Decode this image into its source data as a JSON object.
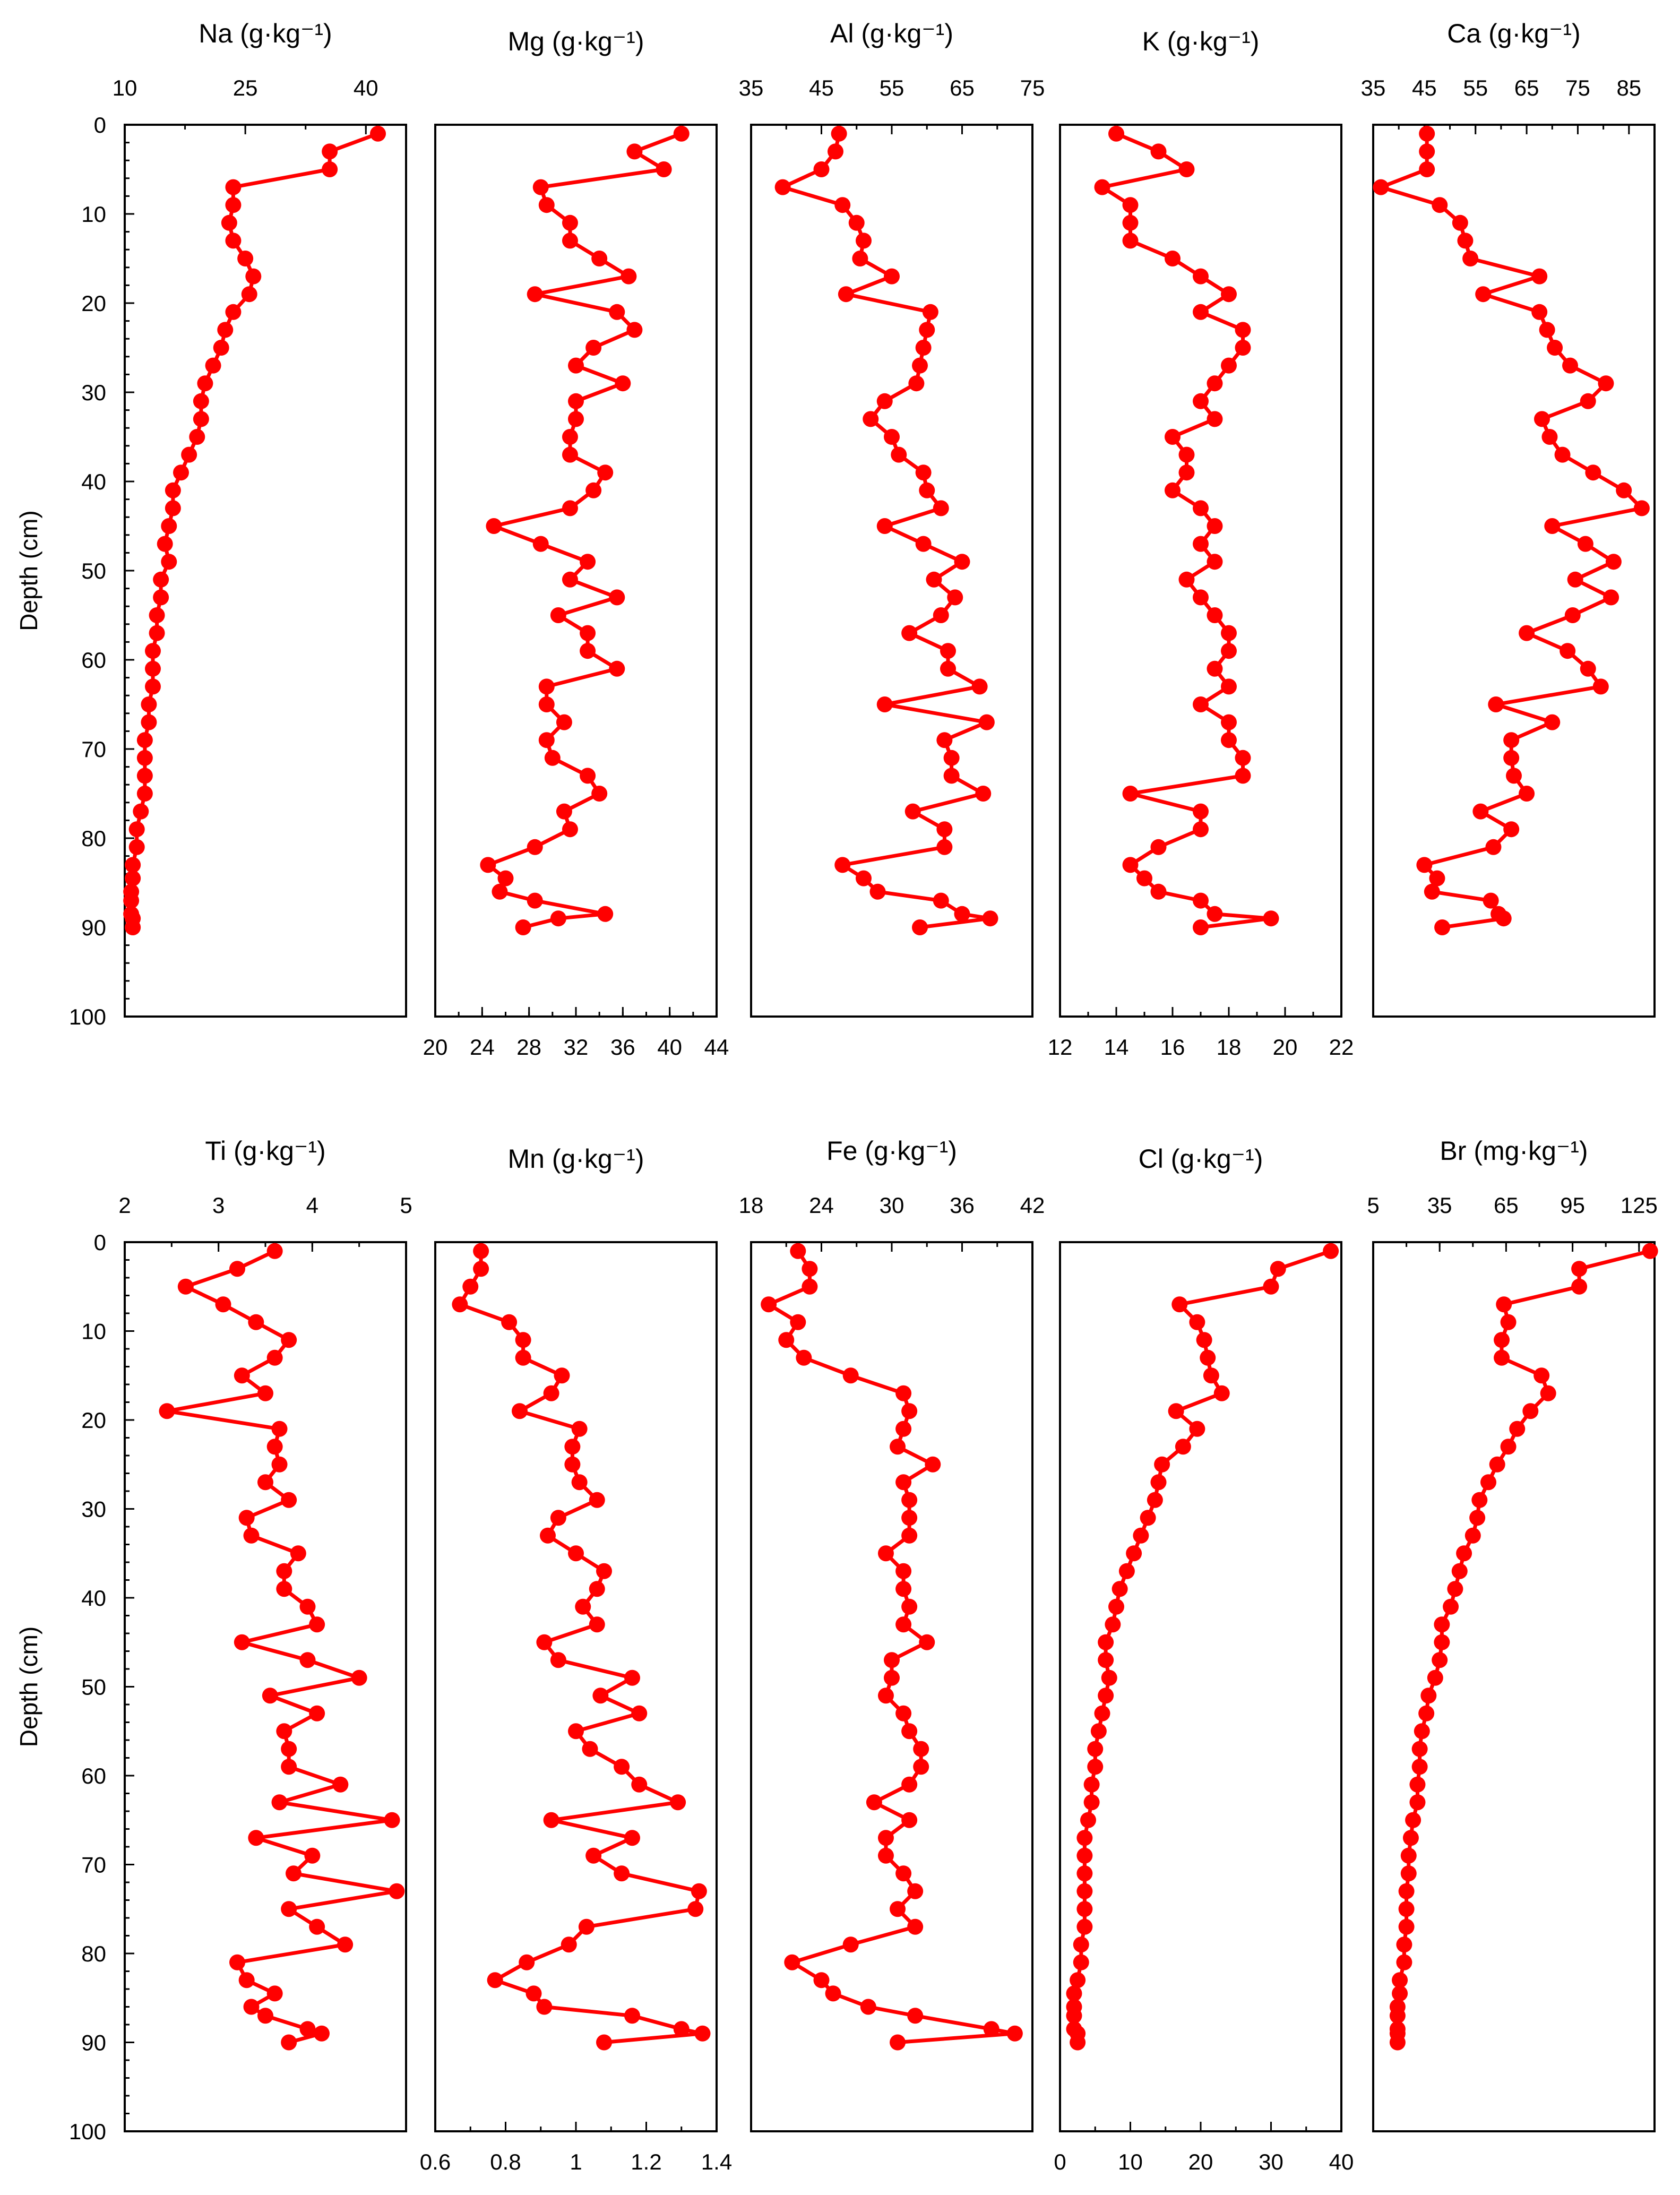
{
  "chart_data": {
    "type": "line",
    "description": "Depth profiles of element concentrations in a sediment core",
    "y_axis": {
      "label": "Depth (cm)",
      "range": [
        0,
        100
      ],
      "ticks": [
        0,
        10,
        20,
        30,
        40,
        50,
        60,
        70,
        80,
        90,
        100
      ],
      "inverted": true
    },
    "depths": [
      1,
      3,
      5,
      7,
      9,
      11,
      13,
      15,
      17,
      19,
      21,
      23,
      25,
      27,
      29,
      31,
      33,
      35,
      37,
      39,
      41,
      43,
      45,
      47,
      49,
      51,
      53,
      55,
      57,
      59,
      61,
      63,
      65,
      67,
      69,
      71,
      73,
      75,
      77,
      79,
      81,
      83,
      84.5,
      86,
      87,
      88.5,
      89,
      90
    ],
    "series_color": "#ff0000",
    "panels": [
      {
        "id": "na",
        "title": "Na (g·kg⁻¹)",
        "axis_pos": "top",
        "xlim": [
          10,
          45
        ],
        "ticks": [
          10,
          25,
          40
        ],
        "values": [
          41.5,
          35.5,
          35.5,
          23.5,
          23.5,
          23,
          23.5,
          25,
          26,
          25.5,
          23.5,
          22.5,
          22,
          21,
          20,
          19.5,
          19.5,
          19,
          18,
          17,
          16,
          16,
          15.5,
          15,
          15.5,
          14.5,
          14.5,
          14,
          14,
          13.5,
          13.5,
          13.5,
          13,
          13,
          12.5,
          12.5,
          12.5,
          12.5,
          12,
          11.5,
          11.5,
          11,
          11,
          10.8,
          10.8,
          10.8,
          11,
          11
        ]
      },
      {
        "id": "mg",
        "title": "Mg (g·kg⁻¹)",
        "axis_pos": "bottom",
        "xlim": [
          20,
          44
        ],
        "ticks": [
          20,
          24,
          28,
          32,
          36,
          40,
          44
        ],
        "values": [
          41,
          37,
          39.5,
          29,
          29.5,
          31.5,
          31.5,
          34,
          36.5,
          28.5,
          35.5,
          37,
          33.5,
          32,
          36,
          32,
          32,
          31.5,
          31.5,
          34.5,
          33.5,
          31.5,
          25,
          29,
          33,
          31.5,
          35.5,
          30.5,
          33,
          33,
          35.5,
          29.5,
          29.5,
          31,
          29.5,
          30,
          33,
          34,
          31,
          31.5,
          28.5,
          24.5,
          26,
          25.5,
          28.5,
          34.5,
          30.5,
          27.5
        ]
      },
      {
        "id": "al",
        "title": "Al (g·kg⁻¹)",
        "axis_pos": "top",
        "xlim": [
          35,
          75
        ],
        "ticks": [
          35,
          45,
          55,
          65,
          75
        ],
        "values": [
          47.5,
          47,
          45,
          39.5,
          48,
          50,
          51,
          50.5,
          55,
          48.5,
          60.5,
          60,
          59.5,
          59,
          58.5,
          54,
          52,
          55,
          56,
          59.5,
          60,
          62,
          54,
          59.5,
          65,
          61,
          64,
          62,
          57.5,
          63,
          63,
          67.5,
          54,
          68.5,
          62.5,
          63.5,
          63.5,
          68,
          58,
          62.5,
          62.5,
          48,
          51,
          53,
          62,
          65,
          69,
          59
        ]
      },
      {
        "id": "k",
        "title": "K (g·kg⁻¹)",
        "axis_pos": "bottom",
        "xlim": [
          12,
          22
        ],
        "ticks": [
          12,
          14,
          16,
          18,
          20,
          22
        ],
        "values": [
          14,
          15.5,
          16.5,
          13.5,
          14.5,
          14.5,
          14.5,
          16,
          17,
          18,
          17,
          18.5,
          18.5,
          18,
          17.5,
          17,
          17.5,
          16,
          16.5,
          16.5,
          16,
          17,
          17.5,
          17,
          17.5,
          16.5,
          17,
          17.5,
          18,
          18,
          17.5,
          18,
          17,
          18,
          18,
          18.5,
          18.5,
          14.5,
          17,
          17,
          15.5,
          14.5,
          15,
          15.5,
          17,
          17.5,
          19.5,
          17
        ]
      },
      {
        "id": "ca",
        "title": "Ca (g·kg⁻¹)",
        "axis_pos": "top",
        "xlim": [
          35,
          90
        ],
        "ticks": [
          35,
          45,
          55,
          65,
          75,
          85
        ],
        "values": [
          45.5,
          45.5,
          45.5,
          36.5,
          48,
          52,
          53,
          54,
          67.5,
          56.5,
          67.5,
          69,
          70.5,
          73.5,
          80.5,
          77,
          68,
          69.5,
          72,
          78,
          84,
          87.5,
          70,
          76.5,
          82,
          74.5,
          81.5,
          74,
          65,
          73,
          77,
          79.5,
          59,
          70,
          62,
          62,
          62.5,
          65,
          56,
          62,
          58.5,
          45,
          47.5,
          46.5,
          58,
          59.5,
          60.5,
          48.5
        ]
      },
      {
        "id": "ti",
        "title": "Ti (g·kg⁻¹)",
        "axis_pos": "top",
        "xlim": [
          2,
          5
        ],
        "ticks": [
          2,
          3,
          4,
          5
        ],
        "values": [
          3.6,
          3.2,
          2.65,
          3.05,
          3.4,
          3.75,
          3.6,
          3.25,
          3.5,
          2.45,
          3.65,
          3.6,
          3.65,
          3.5,
          3.75,
          3.3,
          3.35,
          3.85,
          3.7,
          3.7,
          3.95,
          4.05,
          3.25,
          3.95,
          4.5,
          3.55,
          4.05,
          3.7,
          3.75,
          3.75,
          4.3,
          3.65,
          4.85,
          3.4,
          4.0,
          3.8,
          4.9,
          3.75,
          4.05,
          4.35,
          3.2,
          3.3,
          3.6,
          3.35,
          3.5,
          3.95,
          4.1,
          3.75
        ]
      },
      {
        "id": "mn",
        "title": "Mn (g·kg⁻¹)",
        "axis_pos": "bottom",
        "xlim": [
          0.6,
          1.4
        ],
        "ticks": [
          0.6,
          0.8,
          1,
          1.2,
          1.4
        ],
        "ticklabels": [
          "0.6",
          "0.8",
          "1",
          "1.2",
          "1.4"
        ],
        "values": [
          0.73,
          0.73,
          0.7,
          0.67,
          0.81,
          0.85,
          0.85,
          0.96,
          0.93,
          0.84,
          1.01,
          0.99,
          0.99,
          1.01,
          1.06,
          0.95,
          0.92,
          1,
          1.08,
          1.06,
          1.02,
          1.06,
          0.91,
          0.95,
          1.16,
          1.07,
          1.18,
          1.0,
          1.04,
          1.13,
          1.18,
          1.29,
          0.93,
          1.16,
          1.05,
          1.13,
          1.35,
          1.34,
          1.03,
          0.98,
          0.86,
          0.77,
          0.88,
          0.91,
          1.16,
          1.3,
          1.36,
          1.08
        ]
      },
      {
        "id": "fe",
        "title": "Fe (g·kg⁻¹)",
        "axis_pos": "top",
        "xlim": [
          18,
          42
        ],
        "ticks": [
          18,
          24,
          30,
          36,
          42
        ],
        "values": [
          22,
          23,
          23,
          19.5,
          22,
          21,
          22.5,
          26.5,
          31,
          31.5,
          31,
          30.5,
          33.5,
          31,
          31.5,
          31.5,
          31.5,
          29.5,
          31,
          31,
          31.5,
          31,
          33,
          30,
          30,
          29.5,
          31,
          31.5,
          32.5,
          32.5,
          31.5,
          28.5,
          31.5,
          29.5,
          29.5,
          31,
          32,
          30.5,
          32,
          26.5,
          21.5,
          24,
          25,
          28,
          32,
          38.5,
          40.5,
          30.5
        ]
      },
      {
        "id": "cl",
        "title": "Cl (g·kg⁻¹)",
        "axis_pos": "bottom",
        "xlim": [
          0,
          40
        ],
        "ticks": [
          0,
          10,
          20,
          30,
          40
        ],
        "values": [
          38.5,
          31,
          30,
          17,
          19.5,
          20.5,
          21,
          21.5,
          23,
          16.5,
          19.5,
          17.5,
          14.5,
          14,
          13.5,
          12.5,
          11.5,
          10.5,
          9.5,
          8.5,
          8,
          7.5,
          6.5,
          6.5,
          7,
          6.5,
          6,
          5.5,
          5,
          5,
          4.5,
          4.5,
          4,
          3.5,
          3.5,
          3.5,
          3.5,
          3.5,
          3.5,
          3,
          3,
          2.5,
          2,
          2,
          2,
          2,
          2.5,
          2.5
        ]
      },
      {
        "id": "br",
        "title": "Br (mg·kg⁻¹)",
        "axis_pos": "top",
        "xlim": [
          5,
          132
        ],
        "ticks": [
          5,
          35,
          65,
          95,
          125
        ],
        "values": [
          130,
          98,
          98,
          64,
          66,
          63,
          63,
          81,
          84,
          76,
          70,
          66,
          61,
          57,
          53,
          52,
          50,
          46,
          44,
          42,
          40,
          36,
          36,
          35,
          33,
          30,
          29,
          27,
          26,
          26,
          25,
          25,
          23,
          22,
          21,
          21,
          20,
          20,
          20,
          19,
          19,
          17,
          17,
          16,
          16,
          16,
          16,
          16
        ]
      }
    ]
  }
}
